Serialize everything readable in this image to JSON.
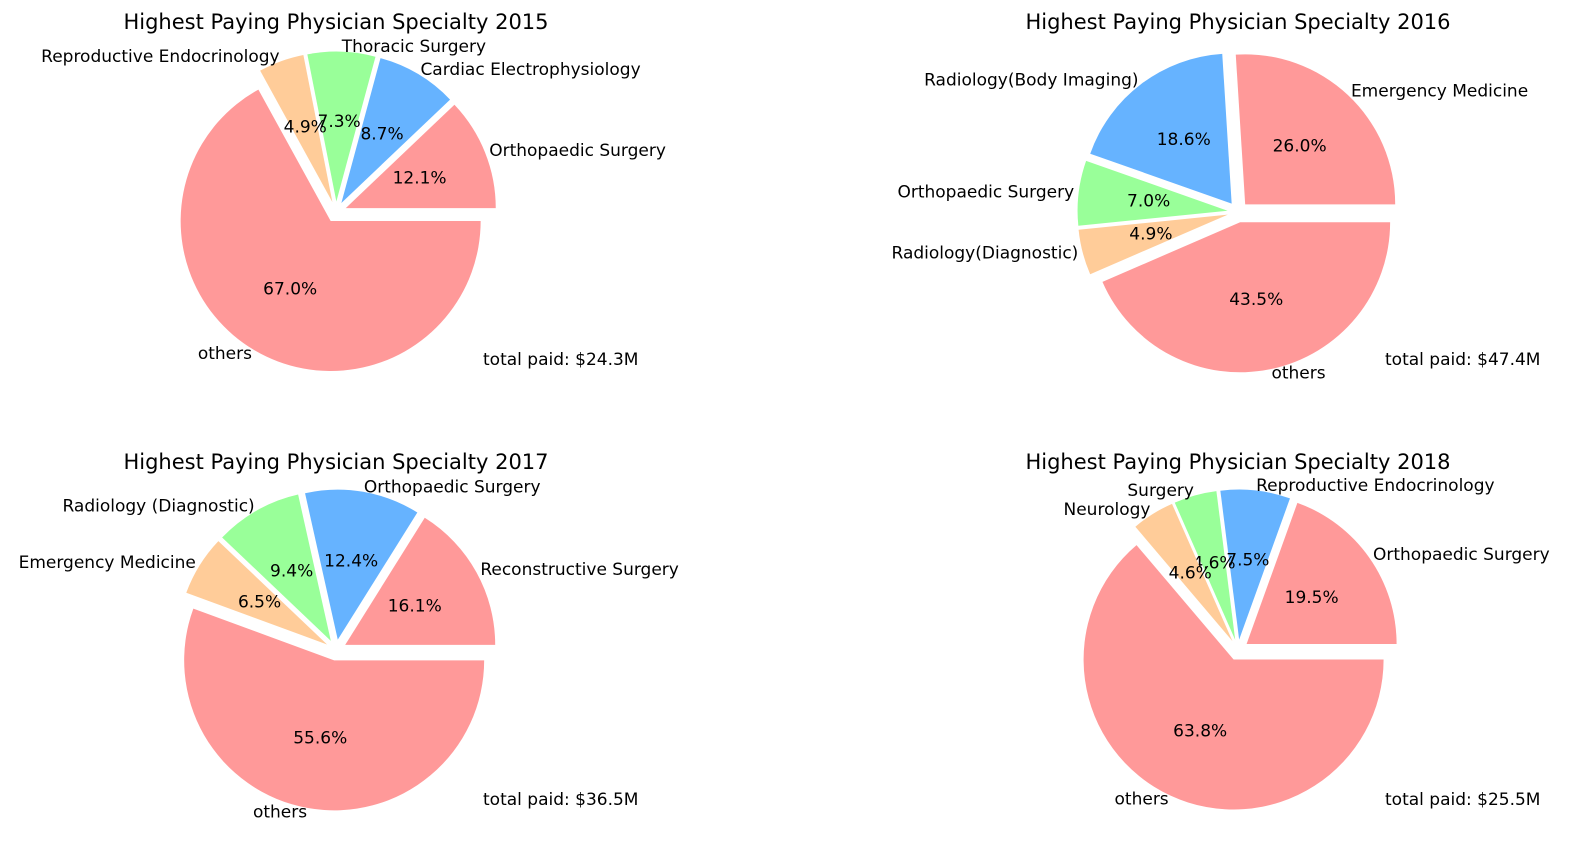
{
  "chart_data": [
    {
      "type": "pie",
      "title": "Highest Paying Physician Specialty 2015",
      "labels": [
        "Orthopaedic Surgery",
        "Cardiac Electrophysiology",
        "Thoracic Surgery",
        "Reproductive Endocrinology",
        "others"
      ],
      "values": [
        12.1,
        8.7,
        7.3,
        4.9,
        67.0
      ],
      "value_labels": [
        "12.1%",
        "8.7%",
        "7.3%",
        "4.9%",
        "67.0%"
      ],
      "colors": [
        "#ff9999",
        "#66b3ff",
        "#99ff99",
        "#ffcc99",
        "#ff9999"
      ],
      "annotation": "total paid: $24.3M"
    },
    {
      "type": "pie",
      "title": "Highest Paying Physician Specialty 2016",
      "labels": [
        "Emergency Medicine",
        "Radiology(Body Imaging)",
        "Orthopaedic Surgery",
        "Radiology(Diagnostic)",
        "others"
      ],
      "values": [
        26.0,
        18.6,
        7.0,
        4.9,
        43.5
      ],
      "value_labels": [
        "26.0%",
        "18.6%",
        "7.0%",
        "4.9%",
        "43.5%"
      ],
      "colors": [
        "#ff9999",
        "#66b3ff",
        "#99ff99",
        "#ffcc99",
        "#ff9999"
      ],
      "annotation": "total paid: $47.4M"
    },
    {
      "type": "pie",
      "title": "Highest Paying Physician Specialty 2017",
      "labels": [
        "Reconstructive Surgery",
        "Orthopaedic Surgery",
        "Radiology (Diagnostic)",
        "Emergency Medicine",
        "others"
      ],
      "values": [
        16.1,
        12.4,
        9.4,
        6.5,
        55.6
      ],
      "value_labels": [
        "16.1%",
        "12.4%",
        "9.4%",
        "6.5%",
        "55.6%"
      ],
      "colors": [
        "#ff9999",
        "#66b3ff",
        "#99ff99",
        "#ffcc99",
        "#ff9999"
      ],
      "annotation": "total paid: $36.5M"
    },
    {
      "type": "pie",
      "title": "Highest Paying Physician Specialty 2018",
      "labels": [
        "Orthopaedic Surgery",
        "Reproductive Endocrinology",
        "Surgery",
        "Neurology",
        "others"
      ],
      "values": [
        19.5,
        7.5,
        4.6,
        4.6,
        63.8
      ],
      "value_labels": [
        "19.5%",
        "7.5%",
        "4.6%",
        "4.6%",
        "63.8%"
      ],
      "colors": [
        "#ff9999",
        "#66b3ff",
        "#99ff99",
        "#ffcc99",
        "#ff9999"
      ],
      "annotation": "total paid: $25.5M"
    }
  ]
}
